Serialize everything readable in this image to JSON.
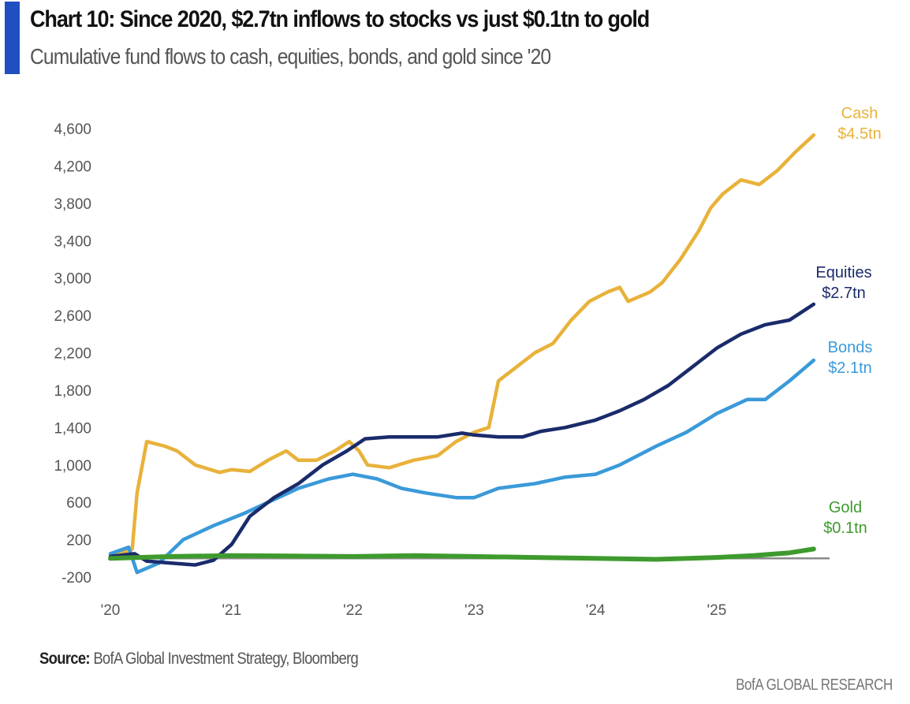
{
  "header": {
    "title": "Chart 10: Since 2020, $2.7tn inflows to stocks vs just $0.1tn to gold",
    "subtitle": "Cumulative fund flows to cash, equities, bonds, and gold since '20",
    "accent_color": "#1f4fc0"
  },
  "footer": {
    "source_label": "Source:",
    "source_text": " BofA Global Investment Strategy, Bloomberg",
    "brand": "BofA GLOBAL RESEARCH"
  },
  "chart_data": {
    "type": "line",
    "title": "Chart 10: Since 2020, $2.7tn inflows to stocks vs just $0.1tn to gold",
    "subtitle": "Cumulative fund flows to cash, equities, bonds, and gold since '20",
    "xlabel": "",
    "ylabel": "",
    "ylim": [
      -200,
      4600
    ],
    "xlim": [
      2020,
      2025.95
    ],
    "yticks": [
      -200,
      200,
      600,
      1000,
      1400,
      1800,
      2200,
      2600,
      3000,
      3400,
      3800,
      4200,
      4600
    ],
    "ytick_labels": [
      "-200",
      "200",
      "600",
      "1,000",
      "1,400",
      "1,800",
      "2,200",
      "2,600",
      "3,000",
      "3,400",
      "3,800",
      "4,200",
      "4,600"
    ],
    "xticks": [
      2020,
      2021,
      2022,
      2023,
      2024,
      2025
    ],
    "xtick_labels": [
      "'20",
      "'21",
      "'22",
      "'23",
      "'24",
      "'25"
    ],
    "grid": false,
    "zero_line": true,
    "legend": "end-of-line labels (right)",
    "series": [
      {
        "name": "Cash",
        "end_label": [
          "Cash",
          "$4.5tn"
        ],
        "color": "#e8b23a",
        "x": [
          2020.0,
          2020.12,
          2020.18,
          2020.22,
          2020.3,
          2020.45,
          2020.55,
          2020.7,
          2020.9,
          2021.0,
          2021.15,
          2021.3,
          2021.45,
          2021.55,
          2021.7,
          2021.85,
          2021.97,
          2022.05,
          2022.12,
          2022.3,
          2022.5,
          2022.7,
          2022.85,
          2023.0,
          2023.12,
          2023.2,
          2023.35,
          2023.5,
          2023.65,
          2023.8,
          2023.95,
          2024.1,
          2024.2,
          2024.27,
          2024.45,
          2024.55,
          2024.7,
          2024.85,
          2024.95,
          2025.05,
          2025.2,
          2025.35,
          2025.5,
          2025.65,
          2025.8
        ],
        "values": [
          50,
          70,
          100,
          700,
          1250,
          1200,
          1150,
          1000,
          920,
          950,
          930,
          1050,
          1150,
          1050,
          1050,
          1150,
          1250,
          1150,
          1000,
          970,
          1050,
          1100,
          1250,
          1350,
          1400,
          1900,
          2050,
          2200,
          2300,
          2550,
          2750,
          2850,
          2900,
          2750,
          2850,
          2950,
          3200,
          3500,
          3750,
          3900,
          4050,
          4000,
          4150,
          4350,
          4530
        ]
      },
      {
        "name": "Equities",
        "end_label": [
          "Equities",
          "$2.7tn"
        ],
        "color": "#1a2b6b",
        "x": [
          2020.0,
          2020.2,
          2020.3,
          2020.5,
          2020.7,
          2020.85,
          2021.0,
          2021.15,
          2021.35,
          2021.55,
          2021.75,
          2021.95,
          2022.1,
          2022.3,
          2022.5,
          2022.7,
          2022.9,
          2023.0,
          2023.2,
          2023.4,
          2023.55,
          2023.75,
          2024.0,
          2024.2,
          2024.4,
          2024.6,
          2024.8,
          2025.0,
          2025.2,
          2025.4,
          2025.6,
          2025.8
        ],
        "values": [
          20,
          50,
          -30,
          -50,
          -70,
          -20,
          150,
          450,
          650,
          800,
          1000,
          1150,
          1280,
          1300,
          1300,
          1300,
          1340,
          1320,
          1300,
          1300,
          1360,
          1400,
          1480,
          1580,
          1700,
          1850,
          2050,
          2250,
          2400,
          2500,
          2550,
          2720
        ]
      },
      {
        "name": "Bonds",
        "end_label": [
          "Bonds",
          "$2.1tn"
        ],
        "color": "#3a9ad9",
        "x": [
          2020.0,
          2020.15,
          2020.22,
          2020.4,
          2020.6,
          2020.85,
          2021.1,
          2021.3,
          2021.55,
          2021.8,
          2022.0,
          2022.2,
          2022.4,
          2022.6,
          2022.85,
          2023.0,
          2023.2,
          2023.5,
          2023.75,
          2024.0,
          2024.2,
          2024.5,
          2024.75,
          2025.0,
          2025.25,
          2025.4,
          2025.6,
          2025.8
        ],
        "values": [
          50,
          120,
          -150,
          -50,
          200,
          350,
          480,
          600,
          750,
          850,
          900,
          850,
          750,
          700,
          650,
          650,
          750,
          800,
          870,
          900,
          1000,
          1200,
          1350,
          1550,
          1700,
          1700,
          1900,
          2120
        ]
      },
      {
        "name": "Gold",
        "end_label": [
          "Gold",
          "$0.1tn"
        ],
        "color": "#3f9a2e",
        "x": [
          2020.0,
          2020.5,
          2021.0,
          2021.5,
          2022.0,
          2022.5,
          2023.0,
          2023.5,
          2024.0,
          2024.5,
          2025.0,
          2025.3,
          2025.6,
          2025.8
        ],
        "values": [
          0,
          20,
          30,
          25,
          20,
          30,
          20,
          10,
          0,
          -10,
          10,
          30,
          60,
          100
        ]
      }
    ]
  }
}
